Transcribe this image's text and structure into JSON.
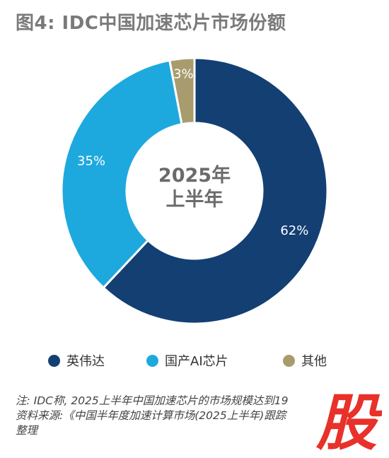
{
  "title": "图4: IDC中国加速芯片市场份额",
  "center_label": {
    "line1": "2025年",
    "line2": "上半年"
  },
  "chart_data": {
    "type": "pie",
    "variant": "donut",
    "title": "图4: IDC中国加速芯片市场份额",
    "categories": [
      "英伟达",
      "国产AI芯片",
      "其他"
    ],
    "values": [
      62,
      35,
      3
    ],
    "unit": "%",
    "colors": [
      "#133f73",
      "#1ea9de",
      "#a89c6e"
    ],
    "label_colors": [
      "#ffffff",
      "#ffffff",
      "#ffffff"
    ],
    "legend_position": "bottom"
  },
  "legend": [
    {
      "label": "英伟达",
      "color": "#133f73"
    },
    {
      "label": "国产AI芯片",
      "color": "#1ea9de"
    },
    {
      "label": "其他",
      "color": "#a89c6e"
    }
  ],
  "notes": {
    "line1": "注: IDC称, 2025上半年中国加速芯片的市场规模达到19",
    "line2": "资料来源:《中国半年度加速计算市场(2025上半年)跟踪",
    "line3": "整理"
  },
  "watermark": {
    "char": "股",
    "color": "#e8312a"
  }
}
